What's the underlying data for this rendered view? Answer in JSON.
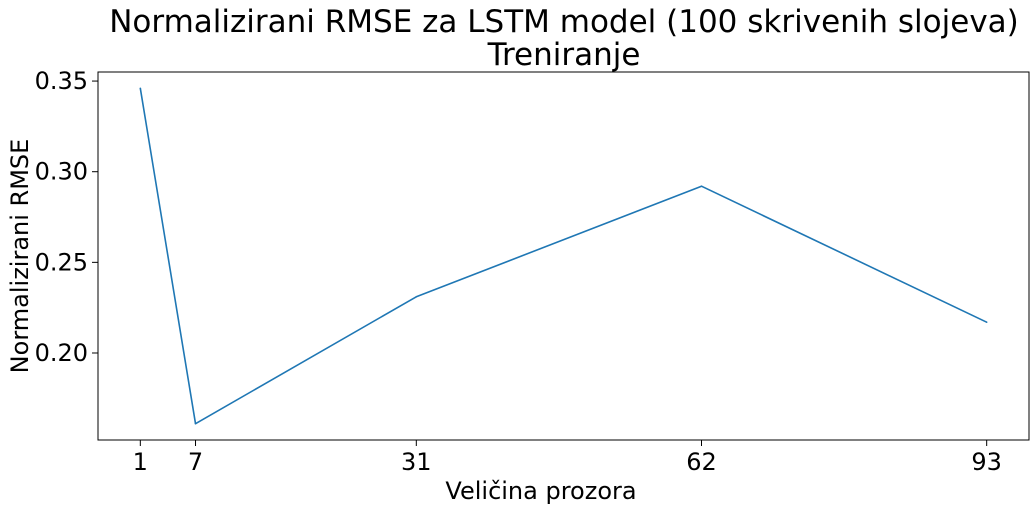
{
  "chart_data": {
    "type": "line",
    "title": "Normalizirani RMSE za LSTM model (100 skrivenih slojeva)",
    "subtitle": "Treniranje",
    "xlabel": "Veličina prozora",
    "ylabel": "Normalizirani RMSE",
    "x": [
      1,
      7,
      31,
      62,
      93
    ],
    "series": [
      {
        "values": [
          0.346,
          0.161,
          0.231,
          0.292,
          0.217
        ]
      }
    ],
    "xticks": [
      1,
      7,
      31,
      62,
      93
    ],
    "yticks": [
      0.2,
      0.25,
      0.3,
      0.35
    ],
    "ytick_labels": [
      "0.20",
      "0.25",
      "0.30",
      "0.35"
    ],
    "xlim": [
      -3.6,
      97.6
    ],
    "ylim": [
      0.152,
      0.355
    ],
    "grid": false,
    "line_color": "#1f77b4"
  }
}
